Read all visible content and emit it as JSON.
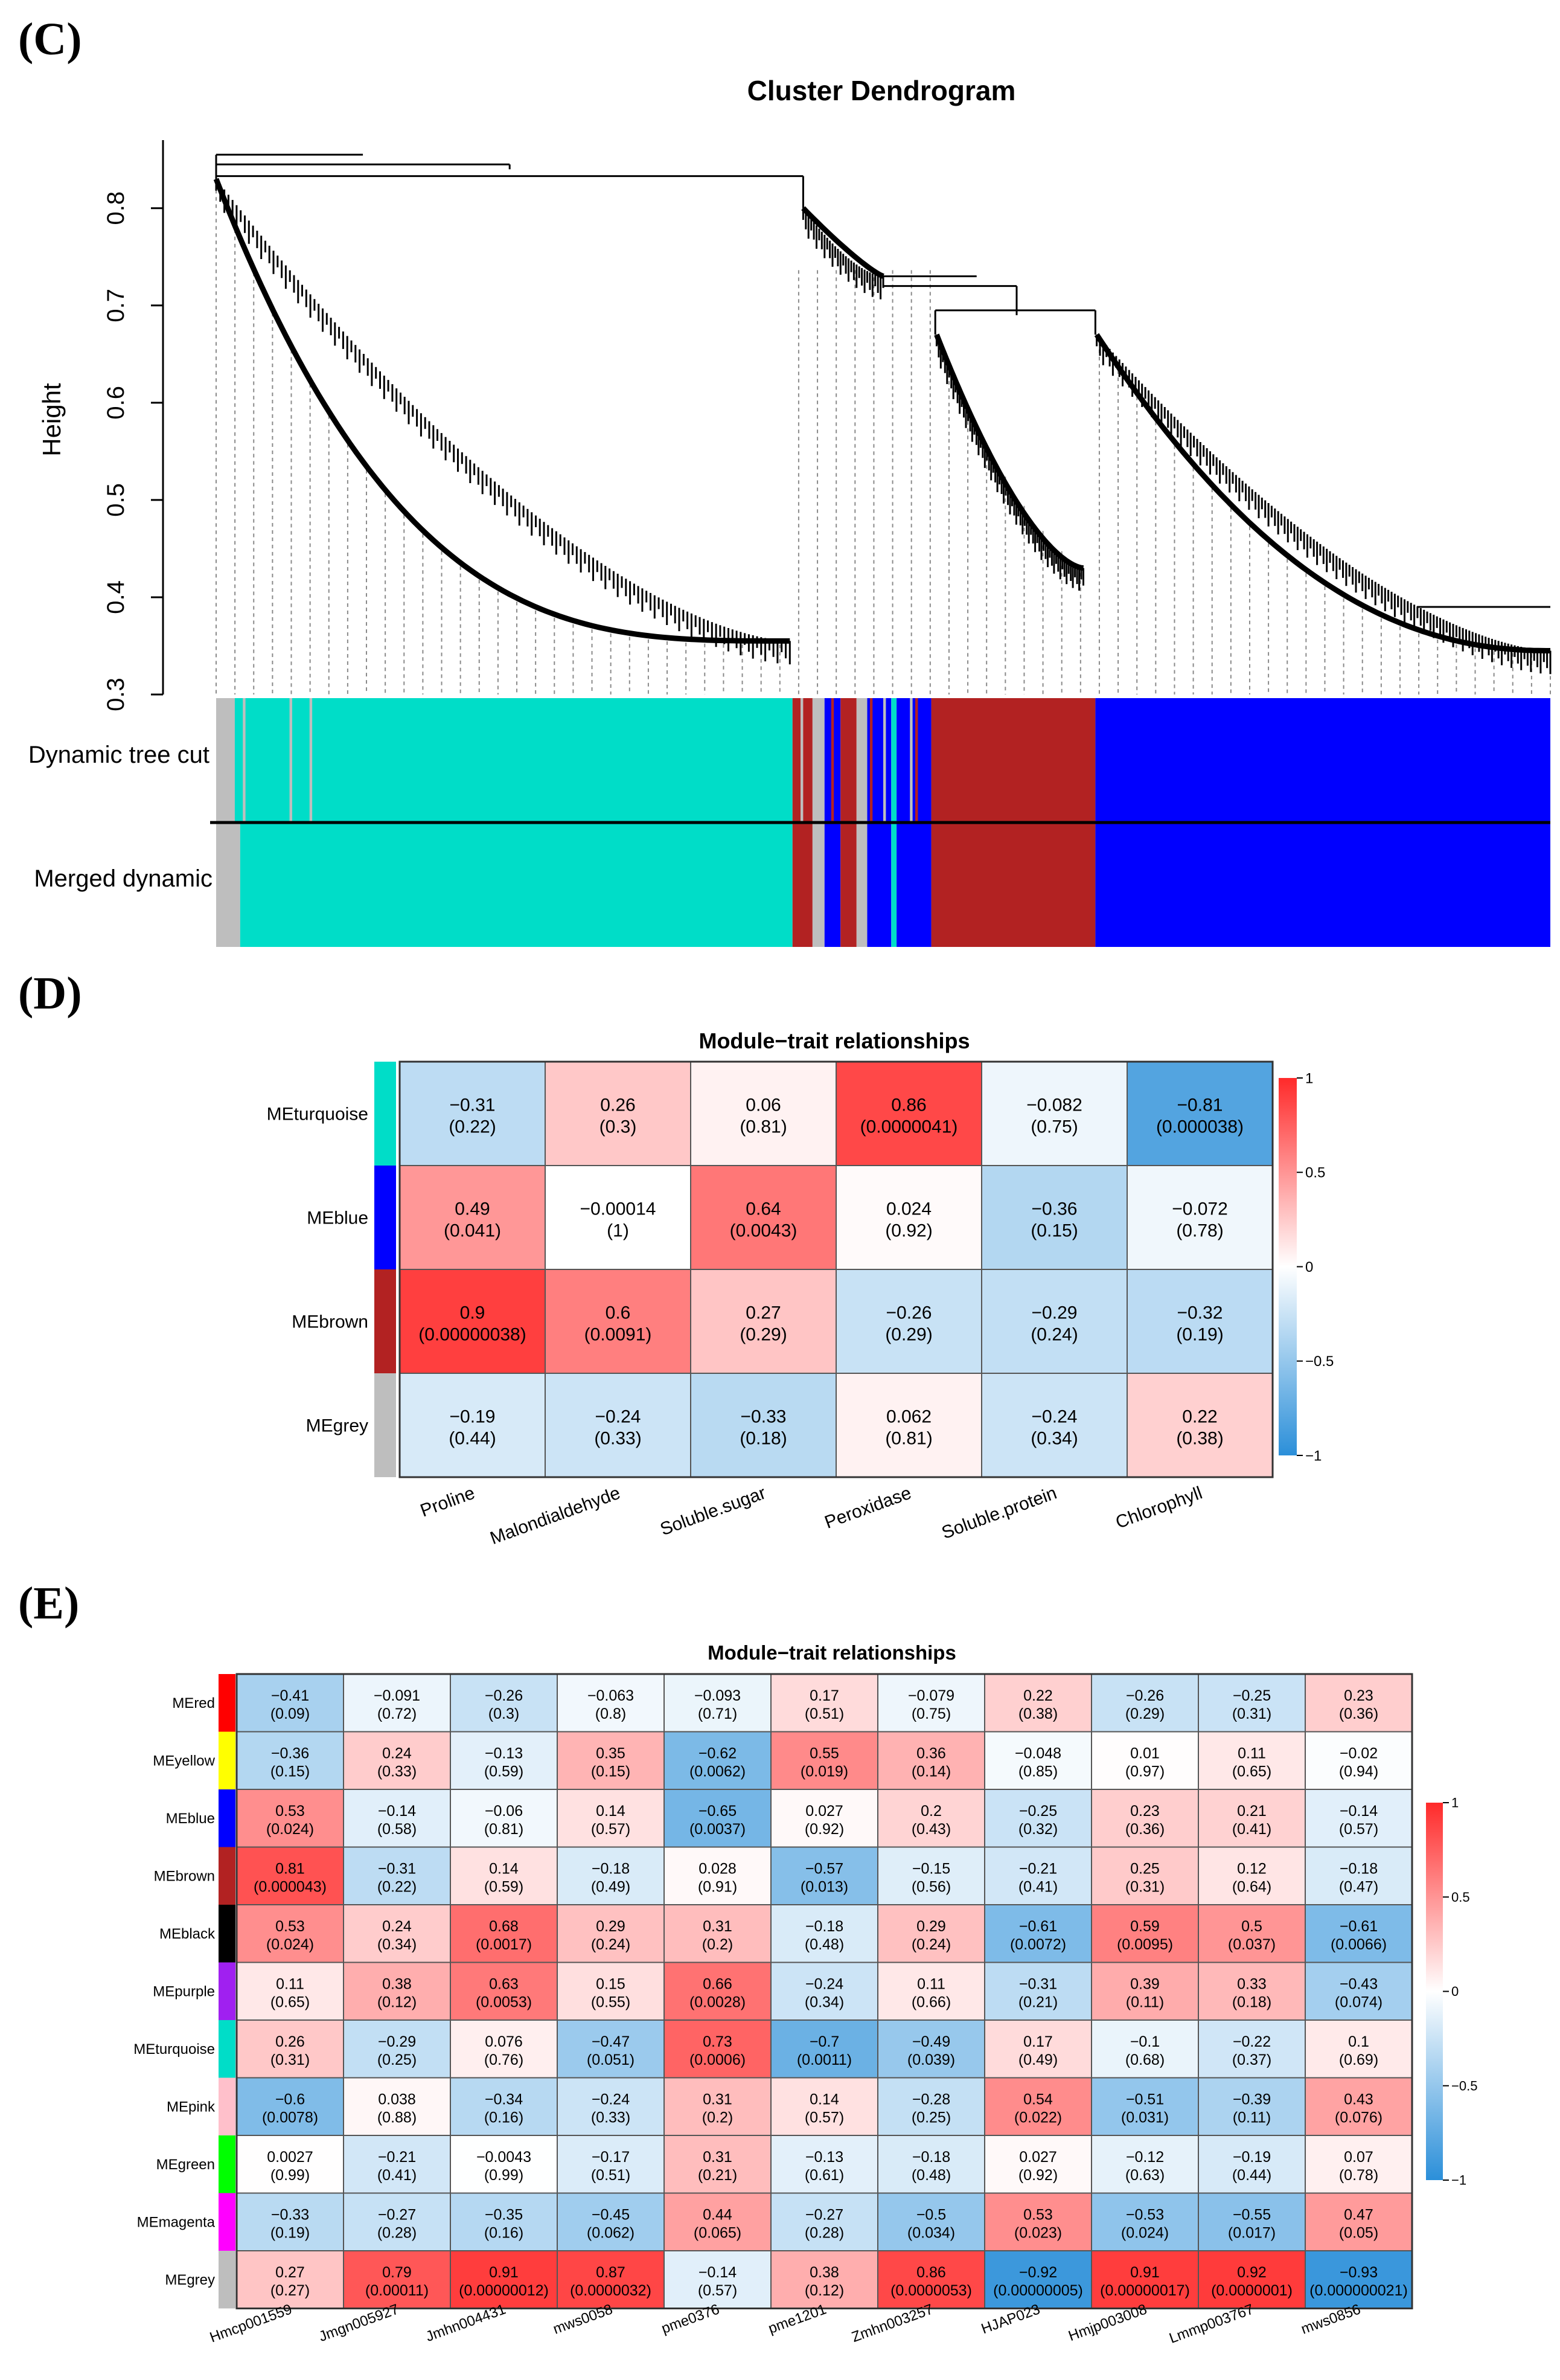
{
  "panels": {
    "c_label": "(C)",
    "d_label": "(D)",
    "e_label": "(E)"
  },
  "colors": {
    "turquoise": "#00ddc8",
    "blue": "#0000ff",
    "brown": "#b22222",
    "grey": "#bebebe",
    "red": "#ff0000",
    "yellow": "#ffff00",
    "black": "#000000",
    "purple": "#a020f0",
    "pink": "#ffc0cb",
    "green": "#00ff00",
    "magenta": "#ff00ff",
    "scale_neg": "#2b8fd9",
    "scale_mid": "#ffffff",
    "scale_pos": "#ff2a2a"
  },
  "chart_data": [
    {
      "id": "dendrogram",
      "type": "other",
      "title": "Cluster Dendrogram",
      "ylabel": "Height",
      "ylim": [
        0.3,
        0.87
      ],
      "yticks": [
        "0.3",
        "0.4",
        "0.5",
        "0.6",
        "0.7",
        "0.8"
      ],
      "color_rows": [
        "Dynamic tree cut",
        "Merged dynamic"
      ],
      "merged_segments": [
        {
          "color": "grey",
          "from": 0.0,
          "to": 0.018
        },
        {
          "color": "turquoise",
          "from": 0.018,
          "to": 0.432
        },
        {
          "color": "brown",
          "from": 0.432,
          "to": 0.447
        },
        {
          "color": "grey",
          "from": 0.447,
          "to": 0.456
        },
        {
          "color": "blue",
          "from": 0.456,
          "to": 0.468
        },
        {
          "color": "brown",
          "from": 0.468,
          "to": 0.48
        },
        {
          "color": "grey",
          "from": 0.48,
          "to": 0.488
        },
        {
          "color": "blue",
          "from": 0.488,
          "to": 0.506
        },
        {
          "color": "turquoise",
          "from": 0.506,
          "to": 0.51
        },
        {
          "color": "blue",
          "from": 0.51,
          "to": 0.536
        },
        {
          "color": "brown",
          "from": 0.536,
          "to": 0.659
        },
        {
          "color": "blue",
          "from": 0.659,
          "to": 1.0
        }
      ]
    },
    {
      "id": "heatmap_d",
      "type": "heatmap",
      "title": "Module−trait relationships",
      "rows": [
        "MEturquoise",
        "MEblue",
        "MEbrown",
        "MEgrey"
      ],
      "row_colors": [
        "turquoise",
        "blue",
        "brown",
        "grey"
      ],
      "columns": [
        "Proline",
        "Malondialdehyde",
        "Soluble.sugar",
        "Peroxidase",
        "Soluble.protein",
        "Chlorophyll"
      ],
      "values": [
        [
          -0.31,
          0.26,
          0.06,
          0.86,
          -0.082,
          -0.81
        ],
        [
          0.49,
          -0.00014,
          0.64,
          0.024,
          -0.36,
          -0.072
        ],
        [
          0.9,
          0.6,
          0.27,
          -0.26,
          -0.29,
          -0.32
        ],
        [
          -0.19,
          -0.24,
          -0.33,
          0.062,
          -0.24,
          0.22
        ]
      ],
      "labels": [
        [
          "−0.31",
          "0.26",
          "0.06",
          "0.86",
          "−0.082",
          "−0.81"
        ],
        [
          "0.49",
          "−0.00014",
          "0.64",
          "0.024",
          "−0.36",
          "−0.072"
        ],
        [
          "0.9",
          "0.6",
          "0.27",
          "−0.26",
          "−0.29",
          "−0.32"
        ],
        [
          "−0.19",
          "−0.24",
          "−0.33",
          "0.062",
          "−0.24",
          "0.22"
        ]
      ],
      "pvalues": [
        [
          "(0.22)",
          "(0.3)",
          "(0.81)",
          "(0.0000041)",
          "(0.75)",
          "(0.000038)"
        ],
        [
          "(0.041)",
          "(1)",
          "(0.0043)",
          "(0.92)",
          "(0.15)",
          "(0.78)"
        ],
        [
          "(0.00000038)",
          "(0.0091)",
          "(0.29)",
          "(0.29)",
          "(0.24)",
          "(0.19)"
        ],
        [
          "(0.44)",
          "(0.33)",
          "(0.18)",
          "(0.81)",
          "(0.34)",
          "(0.38)"
        ]
      ],
      "scale_ticks": [
        "1",
        "0.5",
        "0",
        "−0.5",
        "−1"
      ]
    },
    {
      "id": "heatmap_e",
      "type": "heatmap",
      "title": "Module−trait relationships",
      "rows": [
        "MEred",
        "MEyellow",
        "MEblue",
        "MEbrown",
        "MEblack",
        "MEpurple",
        "MEturquoise",
        "MEpink",
        "MEgreen",
        "MEmagenta",
        "MEgrey"
      ],
      "row_colors": [
        "red",
        "yellow",
        "blue",
        "brown",
        "black",
        "purple",
        "turquoise",
        "pink",
        "green",
        "magenta",
        "grey"
      ],
      "columns": [
        "Hmcp001559",
        "Jmgn005927",
        "Jmhn004431",
        "mws0058",
        "pme0376",
        "pme1201",
        "Zmhn003257",
        "HJAP023",
        "Hmjp003008",
        "Lmmp003767",
        "mws0856"
      ],
      "values": [
        [
          -0.41,
          -0.091,
          -0.26,
          -0.063,
          -0.093,
          0.17,
          -0.079,
          0.22,
          -0.26,
          -0.25,
          0.23
        ],
        [
          -0.36,
          0.24,
          -0.13,
          0.35,
          -0.62,
          0.55,
          0.36,
          -0.048,
          0.01,
          0.11,
          -0.02
        ],
        [
          0.53,
          -0.14,
          -0.06,
          0.14,
          -0.65,
          0.027,
          0.2,
          -0.25,
          0.23,
          0.21,
          -0.14
        ],
        [
          0.81,
          -0.31,
          0.14,
          -0.18,
          0.028,
          -0.57,
          -0.15,
          -0.21,
          0.25,
          0.12,
          -0.18
        ],
        [
          0.53,
          0.24,
          0.68,
          0.29,
          0.31,
          -0.18,
          0.29,
          -0.61,
          0.59,
          0.5,
          -0.61
        ],
        [
          0.11,
          0.38,
          0.63,
          0.15,
          0.66,
          -0.24,
          0.11,
          -0.31,
          0.39,
          0.33,
          -0.43
        ],
        [
          0.26,
          -0.29,
          0.076,
          -0.47,
          0.73,
          -0.7,
          -0.49,
          0.17,
          -0.1,
          -0.22,
          0.1
        ],
        [
          -0.6,
          0.038,
          -0.34,
          -0.24,
          0.31,
          0.14,
          -0.28,
          0.54,
          -0.51,
          -0.39,
          0.43
        ],
        [
          0.0027,
          -0.21,
          -0.0043,
          -0.17,
          0.31,
          -0.13,
          -0.18,
          0.027,
          -0.12,
          -0.19,
          0.07
        ],
        [
          -0.33,
          -0.27,
          -0.35,
          -0.45,
          0.44,
          -0.27,
          -0.5,
          0.53,
          -0.53,
          -0.55,
          0.47
        ],
        [
          0.27,
          0.79,
          0.91,
          0.87,
          -0.14,
          0.38,
          0.86,
          -0.92,
          0.91,
          0.92,
          -0.93
        ]
      ],
      "labels": [
        [
          "−0.41",
          "−0.091",
          "−0.26",
          "−0.063",
          "−0.093",
          "0.17",
          "−0.079",
          "0.22",
          "−0.26",
          "−0.25",
          "0.23"
        ],
        [
          "−0.36",
          "0.24",
          "−0.13",
          "0.35",
          "−0.62",
          "0.55",
          "0.36",
          "−0.048",
          "0.01",
          "0.11",
          "−0.02"
        ],
        [
          "0.53",
          "−0.14",
          "−0.06",
          "0.14",
          "−0.65",
          "0.027",
          "0.2",
          "−0.25",
          "0.23",
          "0.21",
          "−0.14"
        ],
        [
          "0.81",
          "−0.31",
          "0.14",
          "−0.18",
          "0.028",
          "−0.57",
          "−0.15",
          "−0.21",
          "0.25",
          "0.12",
          "−0.18"
        ],
        [
          "0.53",
          "0.24",
          "0.68",
          "0.29",
          "0.31",
          "−0.18",
          "0.29",
          "−0.61",
          "0.59",
          "0.5",
          "−0.61"
        ],
        [
          "0.11",
          "0.38",
          "0.63",
          "0.15",
          "0.66",
          "−0.24",
          "0.11",
          "−0.31",
          "0.39",
          "0.33",
          "−0.43"
        ],
        [
          "0.26",
          "−0.29",
          "0.076",
          "−0.47",
          "0.73",
          "−0.7",
          "−0.49",
          "0.17",
          "−0.1",
          "−0.22",
          "0.1"
        ],
        [
          "−0.6",
          "0.038",
          "−0.34",
          "−0.24",
          "0.31",
          "0.14",
          "−0.28",
          "0.54",
          "−0.51",
          "−0.39",
          "0.43"
        ],
        [
          "0.0027",
          "−0.21",
          "−0.0043",
          "−0.17",
          "0.31",
          "−0.13",
          "−0.18",
          "0.027",
          "−0.12",
          "−0.19",
          "0.07"
        ],
        [
          "−0.33",
          "−0.27",
          "−0.35",
          "−0.45",
          "0.44",
          "−0.27",
          "−0.5",
          "0.53",
          "−0.53",
          "−0.55",
          "0.47"
        ],
        [
          "0.27",
          "0.79",
          "0.91",
          "0.87",
          "−0.14",
          "0.38",
          "0.86",
          "−0.92",
          "0.91",
          "0.92",
          "−0.93"
        ]
      ],
      "pvalues": [
        [
          "(0.09)",
          "(0.72)",
          "(0.3)",
          "(0.8)",
          "(0.71)",
          "(0.51)",
          "(0.75)",
          "(0.38)",
          "(0.29)",
          "(0.31)",
          "(0.36)"
        ],
        [
          "(0.15)",
          "(0.33)",
          "(0.59)",
          "(0.15)",
          "(0.0062)",
          "(0.019)",
          "(0.14)",
          "(0.85)",
          "(0.97)",
          "(0.65)",
          "(0.94)"
        ],
        [
          "(0.024)",
          "(0.58)",
          "(0.81)",
          "(0.57)",
          "(0.0037)",
          "(0.92)",
          "(0.43)",
          "(0.32)",
          "(0.36)",
          "(0.41)",
          "(0.57)"
        ],
        [
          "(0.000043)",
          "(0.22)",
          "(0.59)",
          "(0.49)",
          "(0.91)",
          "(0.013)",
          "(0.56)",
          "(0.41)",
          "(0.31)",
          "(0.64)",
          "(0.47)"
        ],
        [
          "(0.024)",
          "(0.34)",
          "(0.0017)",
          "(0.24)",
          "(0.2)",
          "(0.48)",
          "(0.24)",
          "(0.0072)",
          "(0.0095)",
          "(0.037)",
          "(0.0066)"
        ],
        [
          "(0.65)",
          "(0.12)",
          "(0.0053)",
          "(0.55)",
          "(0.0028)",
          "(0.34)",
          "(0.66)",
          "(0.21)",
          "(0.11)",
          "(0.18)",
          "(0.074)"
        ],
        [
          "(0.31)",
          "(0.25)",
          "(0.76)",
          "(0.051)",
          "(0.0006)",
          "(0.0011)",
          "(0.039)",
          "(0.49)",
          "(0.68)",
          "(0.37)",
          "(0.69)"
        ],
        [
          "(0.0078)",
          "(0.88)",
          "(0.16)",
          "(0.33)",
          "(0.2)",
          "(0.57)",
          "(0.25)",
          "(0.022)",
          "(0.031)",
          "(0.11)",
          "(0.076)"
        ],
        [
          "(0.99)",
          "(0.41)",
          "(0.99)",
          "(0.51)",
          "(0.21)",
          "(0.61)",
          "(0.48)",
          "(0.92)",
          "(0.63)",
          "(0.44)",
          "(0.78)"
        ],
        [
          "(0.19)",
          "(0.28)",
          "(0.16)",
          "(0.062)",
          "(0.065)",
          "(0.28)",
          "(0.034)",
          "(0.023)",
          "(0.024)",
          "(0.017)",
          "(0.05)"
        ],
        [
          "(0.27)",
          "(0.00011)",
          "(0.00000012)",
          "(0.0000032)",
          "(0.57)",
          "(0.12)",
          "(0.0000053)",
          "(0.00000005)",
          "(0.00000017)",
          "(0.0000001)",
          "(0.000000021)"
        ]
      ],
      "scale_ticks": [
        "1",
        "0.5",
        "0",
        "−0.5",
        "−1"
      ]
    }
  ]
}
